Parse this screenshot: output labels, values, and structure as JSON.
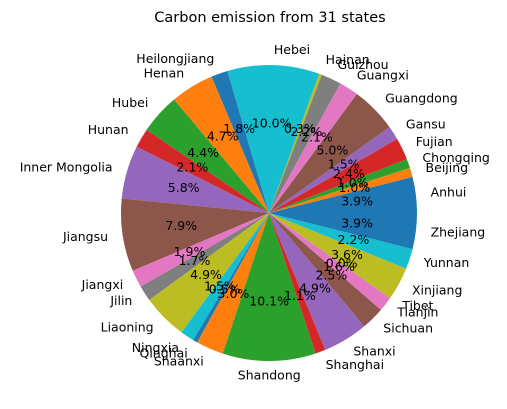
{
  "chart_data": {
    "type": "pie",
    "title": "Carbon emission from 31 states",
    "start_angle_deg": 0,
    "direction": "counterclockwise",
    "label_format": "one decimal percent",
    "colors": [
      "#1f77b4",
      "#ff7f0e",
      "#2ca02c",
      "#d62728",
      "#9467bd",
      "#8c564b",
      "#e377c2",
      "#7f7f7f",
      "#bcbd22",
      "#17becf"
    ],
    "slices": [
      {
        "label": "Anhui",
        "value": 3.9
      },
      {
        "label": "Beijing",
        "value": 1.0
      },
      {
        "label": "Chongqing",
        "value": 1.0
      },
      {
        "label": "Fujian",
        "value": 2.4
      },
      {
        "label": "Gansu",
        "value": 1.5
      },
      {
        "label": "Guangdong",
        "value": 5.0
      },
      {
        "label": "Guangxi",
        "value": 2.1
      },
      {
        "label": "Guizhou",
        "value": 2.2
      },
      {
        "label": "Hainan",
        "value": 0.3
      },
      {
        "label": "Hebei",
        "value": 10.0
      },
      {
        "label": "Heilongjiang",
        "value": 1.8
      },
      {
        "label": "Henan",
        "value": 4.7
      },
      {
        "label": "Hubei",
        "value": 4.4
      },
      {
        "label": "Hunan",
        "value": 2.1
      },
      {
        "label": "Inner Mongolia",
        "value": 5.8
      },
      {
        "label": "Jiangsu",
        "value": 7.9
      },
      {
        "label": "Jiangxi",
        "value": 1.9
      },
      {
        "label": "Jilin",
        "value": 1.7
      },
      {
        "label": "Liaoning",
        "value": 4.9
      },
      {
        "label": "Ningxia",
        "value": 1.5
      },
      {
        "label": "Qinghai",
        "value": 0.5
      },
      {
        "label": "Shaanxi",
        "value": 3.0
      },
      {
        "label": "Shandong",
        "value": 10.1
      },
      {
        "label": "Shanghai",
        "value": 1.1
      },
      {
        "label": "Shanxi",
        "value": 4.9
      },
      {
        "label": "Sichuan",
        "value": 2.5
      },
      {
        "label": "Tianjin",
        "value": 1.6
      },
      {
        "label": "Tibet",
        "value": 0.0
      },
      {
        "label": "Xinjiang",
        "value": 3.6
      },
      {
        "label": "Yunnan",
        "value": 2.2
      },
      {
        "label": "Zhejiang",
        "value": 3.9
      }
    ]
  }
}
